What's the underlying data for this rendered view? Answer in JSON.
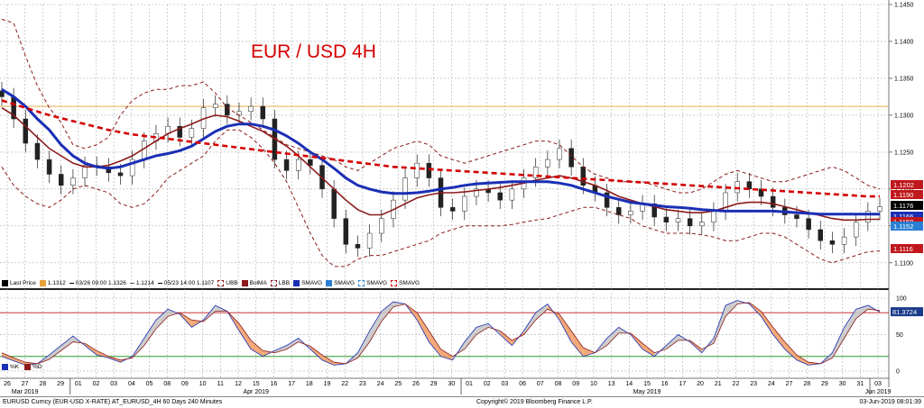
{
  "title": "EUR / USD 4H",
  "legend": {
    "items": [
      {
        "label": "Last Price",
        "color": "#000000",
        "kind": "swatch"
      },
      {
        "label": "1.1312",
        "color": "#e8a23a",
        "kind": "swatch"
      },
      {
        "label": "03/26 09:00 1.1326",
        "color": "#000000",
        "kind": "dash"
      },
      {
        "label": "1.1214",
        "color": "#555555",
        "kind": "text"
      },
      {
        "label": "05/23 14:00 1.1107",
        "color": "#000000",
        "kind": "dash"
      },
      {
        "label": "UBB",
        "color": "#8b1a1a",
        "kind": "dashed"
      },
      {
        "label": "BolMA",
        "color": "#8b1a1a",
        "kind": "swatch"
      },
      {
        "label": "LBB",
        "color": "#8b1a1a",
        "kind": "dashed"
      },
      {
        "label": "SMAVG",
        "color": "#1a2fb5",
        "kind": "swatch"
      },
      {
        "label": "SMAVG",
        "color": "#2a7fd4",
        "kind": "swatch"
      },
      {
        "label": "SMAVG",
        "color": "#2a7fd4",
        "kind": "dashed"
      },
      {
        "label": "SMAVG",
        "color": "#d40000",
        "kind": "dashed"
      }
    ]
  },
  "osc_legend": [
    {
      "label": "%K",
      "color": "#1a2fb5"
    },
    {
      "label": "%D",
      "color": "#8b1a1a"
    }
  ],
  "price_tags": [
    {
      "value": "1.1202",
      "color": "#c0181c"
    },
    {
      "value": "1.1190",
      "color": "#c0181c"
    },
    {
      "value": "1.1176",
      "color": "#000000"
    },
    {
      "value": "1.1166",
      "color": "#1a2fb5"
    },
    {
      "value": "1.1159",
      "color": "#c0181c"
    },
    {
      "value": "1.1152",
      "color": "#2a7fd4"
    },
    {
      "value": "1.1116",
      "color": "#c0181c"
    }
  ],
  "osc_tag": {
    "value": "81.3724",
    "color": "#1a3a8a"
  },
  "x_axis": {
    "ticks": [
      "26",
      "27",
      "28",
      "29",
      "01",
      "02",
      "03",
      "04",
      "05",
      "08",
      "09",
      "10",
      "11",
      "12",
      "15",
      "16",
      "17",
      "18",
      "19",
      "22",
      "23",
      "24",
      "25",
      "26",
      "29",
      "30",
      "01",
      "02",
      "03",
      "06",
      "07",
      "08",
      "09",
      "10",
      "13",
      "14",
      "15",
      "16",
      "17",
      "20",
      "21",
      "22",
      "23",
      "24",
      "27",
      "28",
      "29",
      "30",
      "31",
      "03"
    ],
    "months": [
      {
        "label": "Mar 2019",
        "tick_index": 1
      },
      {
        "label": "Apr 2019",
        "tick_index": 14
      },
      {
        "label": "May 2019",
        "tick_index": 36
      },
      {
        "label": "Jun 2019",
        "tick_index": 49
      }
    ]
  },
  "footer": {
    "left": "EURUSD Curncy (EUR-USD X-RATE) AT_EURUSD_4H 60 Days 240 Minutes",
    "center": "Copyright© 2019 Bloomberg Finance L.P.",
    "right": "03-Jun-2019 08:01:39"
  },
  "chart_data": [
    {
      "type": "candlestick",
      "title": "EUR / USD 4H",
      "ylim": [
        1.109,
        1.145
      ],
      "y_ticks": [
        "1.1450",
        "1.1400",
        "1.1350",
        "1.1300",
        "1.1250",
        "1.1200",
        "1.1150",
        "1.1100"
      ],
      "reference_line": {
        "label": "1.1312",
        "value": 1.1312,
        "color": "#e8a23a"
      },
      "grid": true,
      "series": [
        {
          "name": "Last Price",
          "values": [
            1.1325,
            1.1295,
            1.1262,
            1.124,
            1.122,
            1.1205,
            1.1215,
            1.1232,
            1.123,
            1.1222,
            1.1218,
            1.124,
            1.1265,
            1.1275,
            1.1285,
            1.127,
            1.1282,
            1.131,
            1.1315,
            1.13,
            1.1305,
            1.1312,
            1.1295,
            1.124,
            1.1225,
            1.124,
            1.1232,
            1.12,
            1.116,
            1.1125,
            1.112,
            1.114,
            1.116,
            1.1185,
            1.1215,
            1.1235,
            1.1215,
            1.1175,
            1.117,
            1.119,
            1.12,
            1.1195,
            1.1185,
            1.12,
            1.1215,
            1.123,
            1.124,
            1.1255,
            1.123,
            1.1205,
            1.1195,
            1.1175,
            1.1165,
            1.117,
            1.118,
            1.1162,
            1.1155,
            1.116,
            1.115,
            1.1155,
            1.117,
            1.1195,
            1.121,
            1.12,
            1.119,
            1.1175,
            1.1165,
            1.116,
            1.1145,
            1.113,
            1.1125,
            1.1135,
            1.1155,
            1.117,
            1.1176
          ]
        },
        {
          "name": "UBB",
          "values": [
            1.143,
            1.1425,
            1.138,
            1.134,
            1.131,
            1.129,
            1.126,
            1.1255,
            1.126,
            1.127,
            1.13,
            1.132,
            1.133,
            1.1335,
            1.1335,
            1.134,
            1.134,
            1.1345,
            1.133,
            1.131,
            1.13,
            1.129,
            1.128,
            1.127,
            1.126,
            1.1255,
            1.125,
            1.1245,
            1.124,
            1.123,
            1.1225,
            1.1235,
            1.1245,
            1.1255,
            1.126,
            1.1265,
            1.126,
            1.1245,
            1.124,
            1.1235,
            1.124,
            1.1245,
            1.125,
            1.1255,
            1.126,
            1.1265,
            1.1265,
            1.126,
            1.1245,
            1.123,
            1.122,
            1.1215,
            1.121,
            1.121,
            1.121,
            1.1205,
            1.12,
            1.1195,
            1.1195,
            1.12,
            1.121,
            1.122,
            1.1225,
            1.122,
            1.1215,
            1.121,
            1.121,
            1.1215,
            1.122,
            1.1225,
            1.123,
            1.1225,
            1.1215,
            1.1205,
            1.12
          ]
        },
        {
          "name": "BolMA",
          "values": [
            1.131,
            1.13,
            1.1285,
            1.127,
            1.1255,
            1.1245,
            1.1235,
            1.123,
            1.123,
            1.1232,
            1.1238,
            1.1245,
            1.1255,
            1.1265,
            1.1275,
            1.1282,
            1.1288,
            1.1295,
            1.13,
            1.1298,
            1.1292,
            1.1285,
            1.1278,
            1.1268,
            1.1258,
            1.1245,
            1.123,
            1.1215,
            1.12,
            1.1185,
            1.1172,
            1.1165,
            1.1165,
            1.1172,
            1.118,
            1.1188,
            1.1192,
            1.1195,
            1.1195,
            1.1196,
            1.1198,
            1.12,
            1.1202,
            1.1205,
            1.1208,
            1.1212,
            1.1215,
            1.1218,
            1.1215,
            1.121,
            1.1205,
            1.1198,
            1.119,
            1.1185,
            1.118,
            1.1176,
            1.1172,
            1.117,
            1.1168,
            1.1168,
            1.117,
            1.1175,
            1.118,
            1.1182,
            1.1182,
            1.118,
            1.1176,
            1.1172,
            1.1168,
            1.1164,
            1.116,
            1.1158,
            1.1158,
            1.1159,
            1.1159
          ]
        },
        {
          "name": "LBB",
          "values": [
            1.123,
            1.1205,
            1.119,
            1.118,
            1.1175,
            1.1185,
            1.12,
            1.1205,
            1.12,
            1.1195,
            1.118,
            1.1175,
            1.118,
            1.1195,
            1.1215,
            1.1225,
            1.1235,
            1.1245,
            1.1265,
            1.128,
            1.128,
            1.127,
            1.1255,
            1.1235,
            1.121,
            1.1175,
            1.114,
            1.111,
            1.1095,
            1.1095,
            1.1105,
            1.111,
            1.111,
            1.1115,
            1.112,
            1.1125,
            1.113,
            1.114,
            1.1145,
            1.115,
            1.115,
            1.115,
            1.115,
            1.1152,
            1.1155,
            1.1158,
            1.116,
            1.1165,
            1.117,
            1.1175,
            1.1175,
            1.117,
            1.1165,
            1.116,
            1.115,
            1.1145,
            1.114,
            1.114,
            1.114,
            1.1138,
            1.1135,
            1.113,
            1.113,
            1.1135,
            1.114,
            1.114,
            1.1135,
            1.1125,
            1.1115,
            1.1105,
            1.11,
            1.1105,
            1.111,
            1.1115,
            1.1116
          ]
        },
        {
          "name": "SMAVG",
          "color": "#1a2fb5",
          "values": [
            1.1335,
            1.1325,
            1.1312,
            1.1295,
            1.128,
            1.126,
            1.1245,
            1.1235,
            1.123,
            1.1228,
            1.123,
            1.1235,
            1.124,
            1.1245,
            1.1248,
            1.1252,
            1.1258,
            1.1268,
            1.1278,
            1.1285,
            1.1288,
            1.1288,
            1.1285,
            1.128,
            1.1272,
            1.1262,
            1.125,
            1.124,
            1.1228,
            1.1215,
            1.1205,
            1.12,
            1.1196,
            1.1194,
            1.1194,
            1.1195,
            1.1197,
            1.12,
            1.1202,
            1.1205,
            1.1207,
            1.1208,
            1.1209,
            1.121,
            1.121,
            1.121,
            1.121,
            1.1208,
            1.1205,
            1.12,
            1.1195,
            1.119,
            1.1186,
            1.1182,
            1.118,
            1.1178,
            1.1176,
            1.1175,
            1.1174,
            1.1172,
            1.1171,
            1.117,
            1.117,
            1.117,
            1.117,
            1.117,
            1.1169,
            1.1168,
            1.1167,
            1.1166,
            1.1166,
            1.1166,
            1.1166,
            1.1166,
            1.1166
          ]
        },
        {
          "name": "SMAVG",
          "color": "#d40000",
          "values": [
            1.132,
            1.1315,
            1.131,
            1.1305,
            1.13,
            1.1296,
            1.1292,
            1.1288,
            1.1284,
            1.128,
            1.1277,
            1.1274,
            1.1272,
            1.127,
            1.1268,
            1.1266,
            1.1264,
            1.1262,
            1.126,
            1.1258,
            1.1256,
            1.1254,
            1.1252,
            1.125,
            1.1248,
            1.1246,
            1.1244,
            1.1242,
            1.124,
            1.1238,
            1.1236,
            1.1234,
            1.1232,
            1.123,
            1.1229,
            1.1228,
            1.1227,
            1.1226,
            1.1225,
            1.1224,
            1.1223,
            1.1222,
            1.1221,
            1.122,
            1.1219,
            1.1218,
            1.1217,
            1.1216,
            1.1215,
            1.1214,
            1.1213,
            1.1212,
            1.1211,
            1.121,
            1.1209,
            1.1208,
            1.1207,
            1.1206,
            1.1205,
            1.1204,
            1.1203,
            1.1202,
            1.1201,
            1.12,
            1.1199,
            1.1198,
            1.1197,
            1.1196,
            1.1195,
            1.1194,
            1.1193,
            1.1192,
            1.1191,
            1.119,
            1.119
          ]
        }
      ]
    },
    {
      "type": "line",
      "title": "",
      "ylim": [
        -10,
        105
      ],
      "y_ticks": [
        "100",
        "50",
        "0"
      ],
      "reference_lines": [
        {
          "value": 80,
          "color": "#c0181c"
        },
        {
          "value": 20,
          "color": "#2a9a2a"
        }
      ],
      "series": [
        {
          "name": "%K",
          "values": [
            20,
            14,
            8,
            10,
            22,
            35,
            48,
            35,
            22,
            18,
            12,
            20,
            45,
            70,
            85,
            78,
            60,
            70,
            90,
            82,
            55,
            30,
            20,
            28,
            35,
            45,
            30,
            15,
            8,
            10,
            25,
            55,
            82,
            95,
            92,
            70,
            40,
            20,
            15,
            40,
            60,
            65,
            50,
            35,
            55,
            80,
            92,
            70,
            40,
            20,
            25,
            45,
            60,
            50,
            30,
            20,
            35,
            50,
            40,
            25,
            45,
            90,
            97,
            92,
            75,
            50,
            30,
            15,
            8,
            10,
            25,
            60,
            85,
            90,
            81
          ]
        },
        {
          "name": "%D",
          "values": [
            25,
            18,
            12,
            10,
            16,
            28,
            40,
            38,
            28,
            20,
            15,
            18,
            35,
            58,
            75,
            80,
            70,
            68,
            82,
            82,
            65,
            42,
            28,
            25,
            30,
            40,
            34,
            22,
            12,
            10,
            18,
            40,
            68,
            88,
            92,
            80,
            55,
            30,
            20,
            30,
            50,
            60,
            55,
            42,
            50,
            70,
            85,
            78,
            55,
            32,
            25,
            35,
            52,
            52,
            38,
            25,
            30,
            42,
            42,
            30,
            38,
            75,
            92,
            94,
            82,
            60,
            40,
            22,
            12,
            10,
            18,
            45,
            72,
            85,
            83
          ]
        }
      ]
    }
  ]
}
